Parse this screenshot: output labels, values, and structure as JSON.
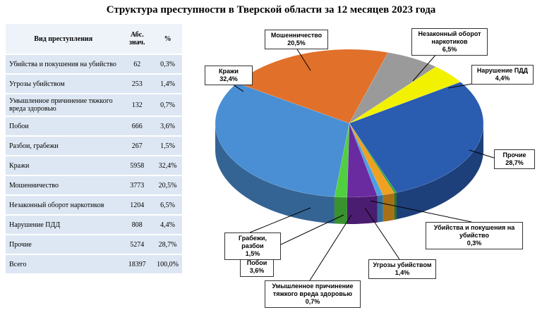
{
  "title": "Структура преступности в Тверской области за 12 месяцев 2023 года",
  "table": {
    "header": [
      "Вид преступления",
      "Абс. знач.",
      "%"
    ],
    "rows": [
      [
        "Убийства и покушения на убийство",
        "62",
        "0,3%"
      ],
      [
        "Угрозы убийством",
        "253",
        "1,4%"
      ],
      [
        "Умышленное причинение тяжкого вреда здоровью",
        "132",
        "0,7%"
      ],
      [
        "Побои",
        "666",
        "3,6%"
      ],
      [
        "Разбои, грабежи",
        "267",
        "1,5%"
      ],
      [
        "Кражи",
        "5958",
        "32,4%"
      ],
      [
        "Мошенничество",
        "3773",
        "20,5%"
      ],
      [
        "Незаконный оборот наркотиков",
        "1204",
        "6,5%"
      ],
      [
        "Нарушение ПДД",
        "808",
        "4,4%"
      ],
      [
        "Прочие",
        "5274",
        "28,7%"
      ],
      [
        "Всего",
        "18397",
        "100,0%"
      ]
    ]
  },
  "chart_data": {
    "type": "pie",
    "categories": [
      "Мошенничество",
      "Незаконный оборот наркотиков",
      "Нарушение ПДД",
      "Прочие",
      "Убийства и покушения на убийство",
      "Угрозы убийством",
      "Умышленное причинение тяжкого вреда здоровью",
      "Побои",
      "Грабежи, разбои",
      "Кражи"
    ],
    "values": [
      20.5,
      6.5,
      4.4,
      28.7,
      0.3,
      1.4,
      0.7,
      3.6,
      1.5,
      32.4
    ],
    "value_labels": [
      "20,5%",
      "6,5%",
      "4,4%",
      "28,7%",
      "0,3%",
      "1,4%",
      "0,7%",
      "3,6%",
      "1,5%",
      "32,4%"
    ],
    "colors": [
      "#e0702a",
      "#9a9a9a",
      "#f2f200",
      "#2a5cb0",
      "#3aa43a",
      "#f0a020",
      "#4aa0e0",
      "#6a2aa0",
      "#50d040",
      "#4a8fd4"
    ]
  }
}
